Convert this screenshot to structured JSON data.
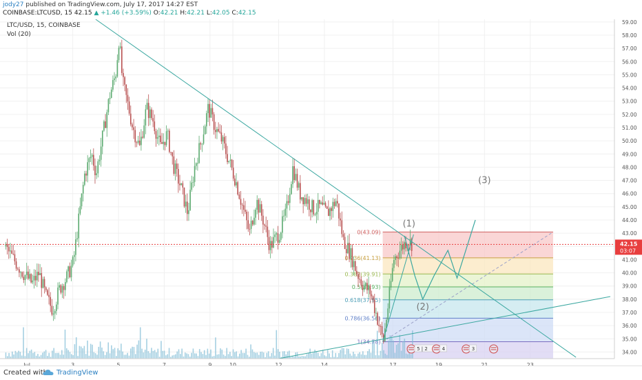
{
  "header": {
    "user": "jody27",
    "published_text": "published on TradingView.com, July 17, 2017 14:27 EST",
    "ticker": "COINBASE:LTCUSD, 15",
    "last": "42.15",
    "change": "+1.46 (+3.59%)",
    "o_label": "O:",
    "o": "42.21",
    "h_label": "H:",
    "h": "42.21",
    "l_label": "L:",
    "l": "42.05",
    "c_label": "C:",
    "c": "42.15"
  },
  "chart_data": {
    "type": "line",
    "legend": {
      "symbol": "LTC/USD, 15, COINBASE",
      "volume": "Vol (20)"
    },
    "x_tick_labels": [
      "Jul",
      "3",
      "5",
      "7",
      "9",
      "10",
      "12",
      "14",
      "17",
      "19",
      "21",
      "23"
    ],
    "x_tick_positions_day": [
      1,
      3,
      5,
      7,
      9,
      10,
      12,
      14,
      17,
      19,
      21,
      23
    ],
    "y_ticks": [
      "34.00",
      "35.00",
      "36.00",
      "37.00",
      "38.00",
      "39.00",
      "40.00",
      "41.00",
      "42.00",
      "43.00",
      "44.00",
      "45.00",
      "46.00",
      "47.00",
      "48.00",
      "49.00",
      "50.00",
      "51.00",
      "52.00",
      "53.00",
      "54.00",
      "55.00",
      "56.00",
      "57.00",
      "58.00",
      "59.00"
    ],
    "ylim": [
      33.5,
      59.2
    ],
    "price_path": [
      [
        0.0,
        42.0
      ],
      [
        0.4,
        41.0
      ],
      [
        0.8,
        40.0
      ],
      [
        1.2,
        39.2
      ],
      [
        1.5,
        40.0
      ],
      [
        1.8,
        38.2
      ],
      [
        2.1,
        37.2
      ],
      [
        2.4,
        38.8
      ],
      [
        2.7,
        39.6
      ],
      [
        3.0,
        40.8
      ],
      [
        3.2,
        43.5
      ],
      [
        3.5,
        47.5
      ],
      [
        3.8,
        49.0
      ],
      [
        4.0,
        47.5
      ],
      [
        4.3,
        50.5
      ],
      [
        4.6,
        53.5
      ],
      [
        4.85,
        55.0
      ],
      [
        5.0,
        57.8
      ],
      [
        5.15,
        54.5
      ],
      [
        5.35,
        53.0
      ],
      [
        5.6,
        51.0
      ],
      [
        5.9,
        49.5
      ],
      [
        6.2,
        52.5
      ],
      [
        6.5,
        51.5
      ],
      [
        6.8,
        49.5
      ],
      [
        7.1,
        50.5
      ],
      [
        7.4,
        48.0
      ],
      [
        7.7,
        46.5
      ],
      [
        8.0,
        44.5
      ],
      [
        8.3,
        48.0
      ],
      [
        8.6,
        50.0
      ],
      [
        8.9,
        52.5
      ],
      [
        9.2,
        51.0
      ],
      [
        9.5,
        50.0
      ],
      [
        9.8,
        48.5
      ],
      [
        10.1,
        47.0
      ],
      [
        10.4,
        45.0
      ],
      [
        10.7,
        43.0
      ],
      [
        11.0,
        45.5
      ],
      [
        11.3,
        44.0
      ],
      [
        11.6,
        42.0
      ],
      [
        12.0,
        43.0
      ],
      [
        12.3,
        44.5
      ],
      [
        12.6,
        48.0
      ],
      [
        12.9,
        46.0
      ],
      [
        13.2,
        45.5
      ],
      [
        13.5,
        44.8
      ],
      [
        13.8,
        45.0
      ],
      [
        14.1,
        44.5
      ],
      [
        14.5,
        45.5
      ],
      [
        14.8,
        42.5
      ],
      [
        15.1,
        41.5
      ],
      [
        15.4,
        40.0
      ],
      [
        15.7,
        39.0
      ],
      [
        16.0,
        38.5
      ],
      [
        16.3,
        36.5
      ],
      [
        16.55,
        34.8
      ],
      [
        16.8,
        38.0
      ],
      [
        17.0,
        41.0
      ],
      [
        17.3,
        41.8
      ],
      [
        17.6,
        42.5
      ],
      [
        17.85,
        42.15
      ]
    ],
    "projection_path": [
      [
        17.5,
        42.8
      ],
      [
        17.95,
        39.8
      ],
      [
        18.3,
        38.0
      ],
      [
        18.8,
        39.8
      ],
      [
        19.4,
        41.7
      ],
      [
        19.8,
        39.6
      ],
      [
        20.6,
        44.0
      ]
    ],
    "fib_levels": [
      {
        "ratio": "0",
        "price": "43.09",
        "label": "0(43.09)",
        "fill": "#f8c8c8"
      },
      {
        "ratio": "0.236",
        "price": "41.13",
        "label": "0.236(41.13)",
        "fill": "#fbe7bf"
      },
      {
        "ratio": "0.382",
        "price": "39.91",
        "label": "0.382(39.91)",
        "fill": "#e4f2c8"
      },
      {
        "ratio": "0.5",
        "price": "38.93",
        "label": "0.5(38.93)",
        "fill": "#cdeccd"
      },
      {
        "ratio": "0.618",
        "price": "37.95",
        "label": "0.618(37.95)",
        "fill": "#c7e7ee"
      },
      {
        "ratio": "0.786",
        "price": "36.56",
        "label": "0.786(36.56)",
        "fill": "#cfdcf5"
      },
      {
        "ratio": "1",
        "price": "34.78",
        "label": "1(34.78)",
        "fill": "#d8d2f1"
      }
    ],
    "fib_x_range_day": [
      16.55,
      24.0
    ],
    "wave_labels": [
      {
        "text": "(1)",
        "day": 17.7,
        "price": 43.5
      },
      {
        "text": "(2)",
        "day": 18.3,
        "price": 37.2
      },
      {
        "text": "(3)",
        "day": 21.0,
        "price": 46.8
      }
    ],
    "current_price": "42.15",
    "countdown": "03:07",
    "event_badges": [
      "5 | 2",
      "4",
      "3",
      ""
    ]
  },
  "footer": {
    "created": "Created with",
    "brand": "TradingView"
  },
  "colors": {
    "trendline": "#3aa7a0",
    "candle_up": "#5aa96e",
    "candle_down": "#b85050",
    "current_price": "#e83e3e",
    "volume": "#7fbcd6"
  }
}
